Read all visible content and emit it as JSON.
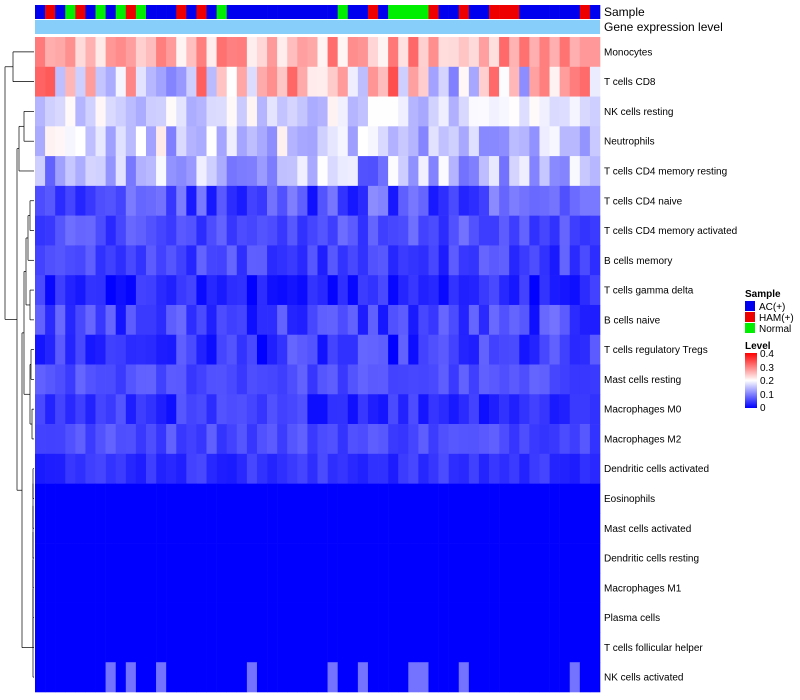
{
  "chart_data": {
    "type": "heatmap",
    "title": "",
    "annotation_tracks": [
      {
        "name": "Sample"
      },
      {
        "name": "Gene expression level"
      }
    ],
    "rows": [
      "Monocytes",
      "T cells CD8",
      "NK cells resting",
      "Neutrophils",
      "T cells CD4 memory resting",
      "T cells CD4 naive",
      "T cells CD4 memory activated",
      "B cells memory",
      "T cells gamma delta",
      "B cells naive",
      "T cells regulatory  Tregs",
      "Mast cells resting",
      "Macrophages M0",
      "Macrophages M2",
      "Dendritic cells activated",
      "Eosinophils",
      "Mast cells activated",
      "Dendritic cells resting",
      "Macrophages M1",
      "Plasma cells",
      "T cells follicular helper",
      "NK cells activated"
    ],
    "sample_groups": [
      "AC",
      "HAM",
      "AC",
      "Normal",
      "HAM",
      "AC",
      "Normal",
      "AC",
      "Normal",
      "HAM",
      "Normal",
      "AC",
      "AC",
      "AC",
      "HAM",
      "AC",
      "HAM",
      "AC",
      "Normal",
      "AC",
      "AC",
      "AC",
      "AC",
      "AC",
      "AC",
      "AC",
      "AC",
      "AC",
      "AC",
      "AC",
      "Normal",
      "AC",
      "AC",
      "HAM",
      "AC",
      "Normal",
      "Normal",
      "Normal",
      "Normal",
      "HAM",
      "AC",
      "AC",
      "HAM",
      "AC",
      "AC",
      "HAM",
      "HAM",
      "HAM",
      "AC",
      "AC",
      "AC",
      "AC",
      "AC",
      "AC",
      "HAM",
      "AC"
    ],
    "legend_sample": {
      "title": "Sample",
      "entries": [
        {
          "label": "AC(+)",
          "color": "#0000ee"
        },
        {
          "label": "HAM(+)",
          "color": "#ee0000"
        },
        {
          "label": "Normal",
          "color": "#00ee00"
        }
      ]
    },
    "legend_level": {
      "title": "Level",
      "ticks": [
        "0.4",
        "0.3",
        "0.2",
        "0.1",
        "0"
      ],
      "range": [
        0,
        0.4
      ]
    },
    "colors": {
      "low": "#0000ff",
      "mid": "#ffffff",
      "high": "#ff0000",
      "gene_expression": "#87cefa"
    }
  }
}
